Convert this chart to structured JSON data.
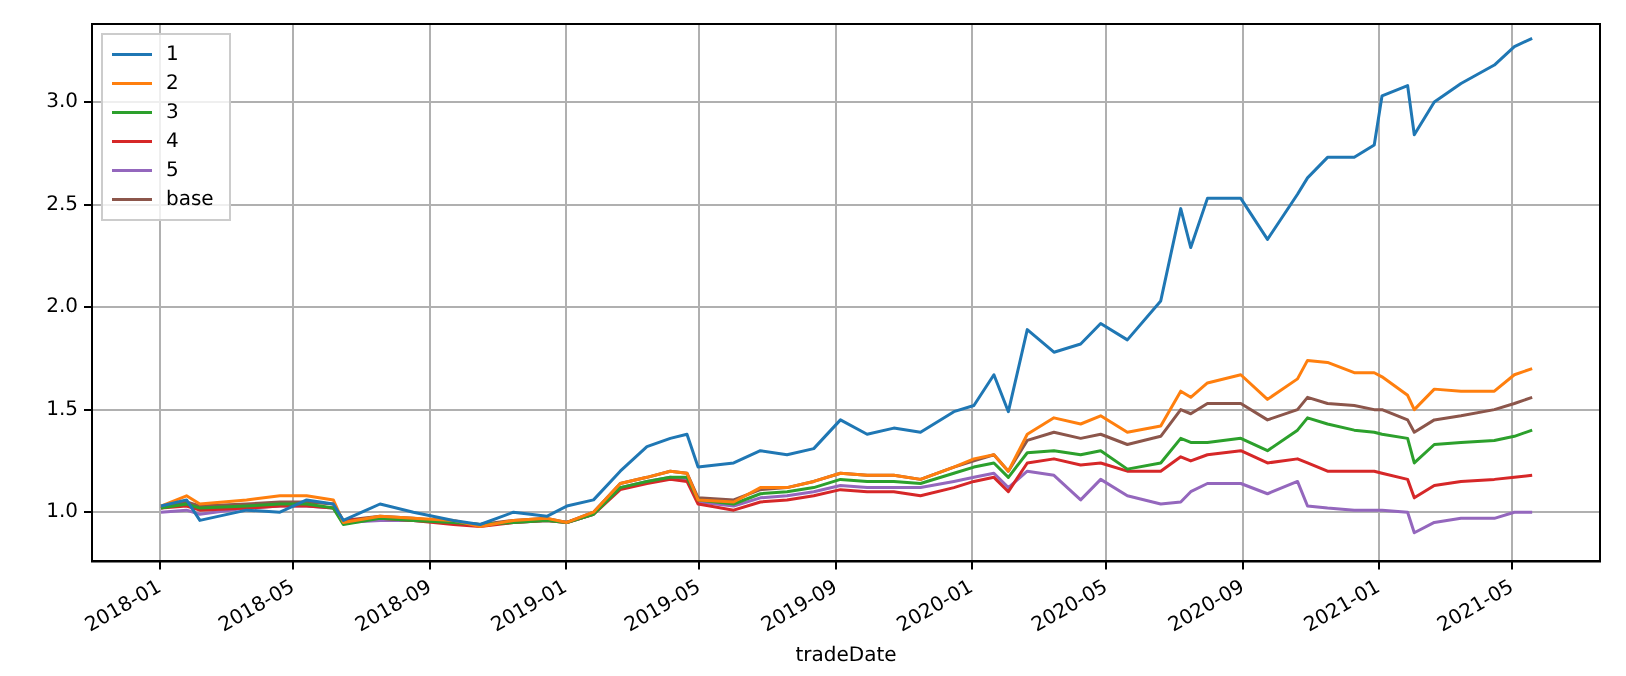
{
  "chart_data": {
    "type": "line",
    "xlabel": "tradeDate",
    "legend": "top left",
    "grid": true,
    "marker": "none",
    "line_style": "solid",
    "xlim": [
      "2017-11-01",
      "2021-07-19"
    ],
    "ylim": [
      0.76,
      3.38
    ],
    "xticks": [
      {
        "value": "2018-01",
        "label": "2018-01"
      },
      {
        "value": "2018-05",
        "label": "2018-05"
      },
      {
        "value": "2018-09",
        "label": "2018-09"
      },
      {
        "value": "2019-01",
        "label": "2019-01"
      },
      {
        "value": "2019-05",
        "label": "2019-05"
      },
      {
        "value": "2019-09",
        "label": "2019-09"
      },
      {
        "value": "2020-01",
        "label": "2020-01"
      },
      {
        "value": "2020-05",
        "label": "2020-05"
      },
      {
        "value": "2020-09",
        "label": "2020-09"
      },
      {
        "value": "2021-01",
        "label": "2021-01"
      },
      {
        "value": "2021-05",
        "label": "2021-05"
      }
    ],
    "yticks": [
      {
        "value": 1,
        "label": "1.0"
      },
      {
        "value": 1.5,
        "label": "1.5"
      },
      {
        "value": 2,
        "label": "2.0"
      },
      {
        "value": 2.5,
        "label": "2.5"
      },
      {
        "value": 3,
        "label": "3.0"
      }
    ],
    "x": [
      "2018-01-02",
      "2018-01-25",
      "2018-02-06",
      "2018-03-20",
      "2018-04-19",
      "2018-05-13",
      "2018-06-06",
      "2018-06-15",
      "2018-07-18",
      "2018-08-17",
      "2018-09-22",
      "2018-10-16",
      "2018-11-15",
      "2018-12-15",
      "2019-01-02",
      "2019-01-26",
      "2019-02-19",
      "2019-03-15",
      "2019-04-05",
      "2019-04-20",
      "2019-04-30",
      "2019-06-01",
      "2019-06-25",
      "2019-07-19",
      "2019-08-12",
      "2019-09-05",
      "2019-09-29",
      "2019-10-23",
      "2019-11-16",
      "2019-12-16",
      "2020-01-03",
      "2020-01-21",
      "2020-02-03",
      "2020-02-20",
      "2020-03-15",
      "2020-04-08",
      "2020-04-26",
      "2020-05-20",
      "2020-06-19",
      "2020-07-07",
      "2020-07-16",
      "2020-07-31",
      "2020-08-30",
      "2020-09-23",
      "2020-10-20",
      "2020-10-29",
      "2020-11-16",
      "2020-12-10",
      "2020-12-28",
      "2021-01-04",
      "2021-01-27",
      "2021-02-02",
      "2021-02-20",
      "2021-03-16",
      "2021-04-15",
      "2021-05-03",
      "2021-05-19"
    ],
    "series": [
      {
        "name": "1",
        "color": "#1f77b4",
        "values": [
          1.03,
          1.06,
          0.96,
          1.01,
          1.0,
          1.06,
          1.04,
          0.96,
          1.04,
          1.0,
          0.96,
          0.94,
          1.0,
          0.98,
          1.03,
          1.06,
          1.2,
          1.32,
          1.36,
          1.38,
          1.22,
          1.24,
          1.3,
          1.28,
          1.31,
          1.45,
          1.38,
          1.41,
          1.39,
          1.49,
          1.52,
          1.67,
          1.49,
          1.89,
          1.78,
          1.82,
          1.92,
          1.84,
          2.03,
          2.48,
          2.29,
          2.53,
          2.53,
          2.33,
          2.55,
          2.63,
          2.73,
          2.73,
          2.79,
          3.03,
          3.08,
          2.84,
          3.0,
          3.09,
          3.18,
          3.27,
          3.31
        ]
      },
      {
        "name": "2",
        "color": "#ff7f0e",
        "values": [
          1.03,
          1.08,
          1.04,
          1.06,
          1.08,
          1.08,
          1.06,
          0.95,
          0.98,
          0.97,
          0.96,
          0.93,
          0.96,
          0.97,
          0.95,
          1.0,
          1.14,
          1.17,
          1.2,
          1.19,
          1.06,
          1.05,
          1.12,
          1.12,
          1.15,
          1.19,
          1.18,
          1.18,
          1.16,
          1.22,
          1.26,
          1.28,
          1.2,
          1.38,
          1.46,
          1.43,
          1.47,
          1.39,
          1.42,
          1.59,
          1.56,
          1.63,
          1.67,
          1.55,
          1.65,
          1.74,
          1.73,
          1.68,
          1.68,
          1.66,
          1.57,
          1.5,
          1.6,
          1.59,
          1.59,
          1.67,
          1.7
        ]
      },
      {
        "name": "3",
        "color": "#2ca02c",
        "values": [
          1.02,
          1.04,
          1.02,
          1.03,
          1.04,
          1.04,
          1.02,
          0.94,
          0.97,
          0.96,
          0.95,
          0.94,
          0.95,
          0.96,
          0.95,
          0.99,
          1.12,
          1.15,
          1.17,
          1.17,
          1.06,
          1.04,
          1.09,
          1.1,
          1.12,
          1.16,
          1.15,
          1.15,
          1.14,
          1.19,
          1.22,
          1.24,
          1.17,
          1.29,
          1.3,
          1.28,
          1.3,
          1.21,
          1.24,
          1.36,
          1.34,
          1.34,
          1.36,
          1.3,
          1.4,
          1.46,
          1.43,
          1.4,
          1.39,
          1.38,
          1.36,
          1.24,
          1.33,
          1.34,
          1.35,
          1.37,
          1.4
        ]
      },
      {
        "name": "4",
        "color": "#d62728",
        "values": [
          1.02,
          1.03,
          1.01,
          1.02,
          1.03,
          1.03,
          1.02,
          0.96,
          0.97,
          0.96,
          0.94,
          0.93,
          0.95,
          0.96,
          0.95,
          0.99,
          1.11,
          1.14,
          1.16,
          1.15,
          1.04,
          1.01,
          1.05,
          1.06,
          1.08,
          1.11,
          1.1,
          1.1,
          1.08,
          1.12,
          1.15,
          1.17,
          1.1,
          1.24,
          1.26,
          1.23,
          1.24,
          1.2,
          1.2,
          1.27,
          1.25,
          1.28,
          1.3,
          1.24,
          1.26,
          1.24,
          1.2,
          1.2,
          1.2,
          1.19,
          1.16,
          1.07,
          1.13,
          1.15,
          1.16,
          1.17,
          1.18
        ]
      },
      {
        "name": "5",
        "color": "#9467bd",
        "values": [
          1.0,
          1.01,
          0.99,
          1.02,
          1.03,
          1.03,
          1.02,
          0.95,
          0.96,
          0.96,
          0.95,
          0.94,
          0.95,
          0.96,
          0.95,
          0.99,
          1.12,
          1.15,
          1.17,
          1.16,
          1.05,
          1.03,
          1.07,
          1.08,
          1.1,
          1.13,
          1.12,
          1.12,
          1.12,
          1.15,
          1.17,
          1.19,
          1.12,
          1.2,
          1.18,
          1.06,
          1.16,
          1.08,
          1.04,
          1.05,
          1.1,
          1.14,
          1.14,
          1.09,
          1.15,
          1.03,
          1.02,
          1.01,
          1.01,
          1.01,
          1.0,
          0.9,
          0.95,
          0.97,
          0.97,
          1.0,
          1.0
        ]
      },
      {
        "name": "base",
        "color": "#8c564b",
        "values": [
          1.02,
          1.05,
          1.03,
          1.04,
          1.05,
          1.05,
          1.04,
          0.96,
          0.98,
          0.97,
          0.95,
          0.94,
          0.96,
          0.97,
          0.95,
          1.0,
          1.14,
          1.17,
          1.2,
          1.19,
          1.07,
          1.06,
          1.11,
          1.12,
          1.15,
          1.19,
          1.18,
          1.18,
          1.16,
          1.22,
          1.25,
          1.28,
          1.2,
          1.35,
          1.39,
          1.36,
          1.38,
          1.33,
          1.37,
          1.5,
          1.48,
          1.53,
          1.53,
          1.45,
          1.5,
          1.56,
          1.53,
          1.52,
          1.5,
          1.5,
          1.45,
          1.39,
          1.45,
          1.47,
          1.5,
          1.53,
          1.56
        ]
      }
    ]
  }
}
